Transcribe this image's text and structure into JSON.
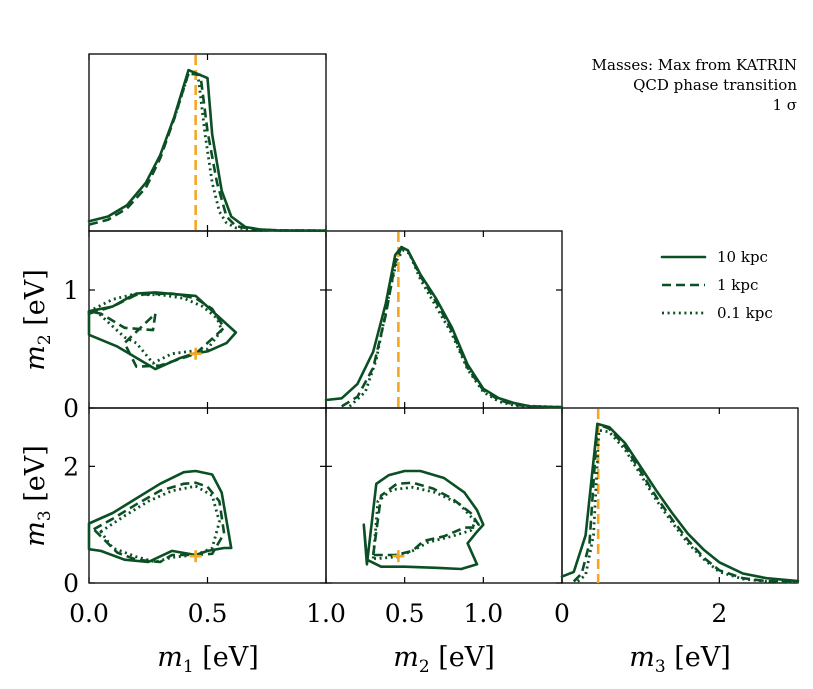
{
  "chart_data": {
    "type": "corner-plot",
    "annotation": [
      "Masses: Max from KATRIN",
      "QCD phase transition",
      "1 σ"
    ],
    "colors": {
      "curves": "#0b4f24",
      "truth": "#f5a623"
    },
    "truth": {
      "m1": 0.45,
      "m2": 0.46,
      "m3": 0.46
    },
    "legend": {
      "position": "right, middle row",
      "entries": [
        {
          "label": "10 kpc",
          "style": "solid"
        },
        {
          "label": "1 kpc",
          "style": "dashed"
        },
        {
          "label": "0.1 kpc",
          "style": "dotted"
        }
      ]
    },
    "axes": {
      "m1": {
        "label": "m1 [eV]",
        "sym": "m",
        "sub": "1",
        "unit": " [eV]",
        "range": [
          0,
          1.0
        ],
        "ticks": [
          0,
          0.5,
          1.0
        ],
        "ticklabels": [
          "0.0",
          "0.5",
          "1.0"
        ]
      },
      "m2": {
        "label": "m2 [eV]",
        "sym": "m",
        "sub": "2",
        "unit": " [eV]",
        "range": [
          0,
          1.5
        ],
        "range_x": [
          0,
          1.5
        ],
        "ticks": [
          0,
          1
        ],
        "ticklabels": [
          "0",
          "1"
        ],
        "ticks_x": [
          0.5,
          1.0
        ],
        "ticklabels_x": [
          "0.5",
          "1.0"
        ]
      },
      "m3": {
        "label": "m3 [eV]",
        "sym": "m",
        "sub": "3",
        "unit": " [eV]",
        "range": [
          0,
          3.0
        ],
        "ticks": [
          0,
          2
        ],
        "ticklabels": [
          "0",
          "2"
        ]
      }
    },
    "marginals": [
      {
        "param": "m1",
        "xlim": [
          0,
          1.0
        ],
        "ylim": [
          0,
          1.1
        ],
        "series": [
          {
            "name": "10 kpc",
            "style": "solid",
            "x": [
              0,
              0.08,
              0.16,
              0.24,
              0.3,
              0.36,
              0.42,
              0.5,
              0.52,
              0.56,
              0.6,
              0.66,
              0.72,
              0.8,
              1.0
            ],
            "y": [
              0.06,
              0.09,
              0.16,
              0.3,
              0.47,
              0.71,
              1.0,
              0.95,
              0.6,
              0.25,
              0.09,
              0.025,
              0.01,
              0.004,
              0.002
            ]
          },
          {
            "name": "1 kpc",
            "style": "dashed",
            "x": [
              0,
              0.08,
              0.16,
              0.24,
              0.3,
              0.36,
              0.42,
              0.47,
              0.5,
              0.54,
              0.58,
              0.62,
              0.7,
              0.8,
              1.0
            ],
            "y": [
              0.04,
              0.07,
              0.14,
              0.27,
              0.45,
              0.7,
              0.98,
              0.97,
              0.62,
              0.3,
              0.09,
              0.03,
              0.01,
              0.004,
              0.002
            ]
          },
          {
            "name": "0.1 kpc",
            "style": "dotted",
            "x": [
              0.36,
              0.42,
              0.46,
              0.49,
              0.52,
              0.55,
              0.58,
              0.62,
              0.7,
              0.8,
              1.0
            ],
            "y": [
              0.7,
              0.98,
              0.97,
              0.6,
              0.3,
              0.12,
              0.05,
              0.02,
              0.008,
              0.004,
              0.002
            ]
          }
        ]
      },
      {
        "param": "m2",
        "xlim": [
          0,
          1.5
        ],
        "ylim": [
          0,
          1.1
        ],
        "series": [
          {
            "name": "10 kpc",
            "style": "solid",
            "x": [
              0,
              0.1,
              0.2,
              0.3,
              0.38,
              0.44,
              0.48,
              0.52,
              0.6,
              0.7,
              0.8,
              0.9,
              1.0,
              1.1,
              1.2,
              1.3,
              1.5
            ],
            "y": [
              0.05,
              0.06,
              0.15,
              0.35,
              0.65,
              0.95,
              1.0,
              0.98,
              0.83,
              0.68,
              0.5,
              0.27,
              0.12,
              0.06,
              0.03,
              0.01,
              0.005
            ]
          },
          {
            "name": "1 kpc",
            "style": "dashed",
            "x": [
              0.1,
              0.2,
              0.3,
              0.38,
              0.44,
              0.48,
              0.52,
              0.6,
              0.7,
              0.8,
              0.9,
              1.0,
              1.1,
              1.2,
              1.3,
              1.5
            ],
            "y": [
              0.01,
              0.07,
              0.25,
              0.58,
              0.9,
              1.0,
              0.98,
              0.82,
              0.66,
              0.48,
              0.25,
              0.11,
              0.05,
              0.02,
              0.01,
              0.005
            ]
          },
          {
            "name": "0.1 kpc",
            "style": "dotted",
            "x": [
              0.15,
              0.25,
              0.32,
              0.4,
              0.45,
              0.49,
              0.53,
              0.6,
              0.7,
              0.8,
              0.9,
              1.0,
              1.1,
              1.2,
              1.5
            ],
            "y": [
              0.01,
              0.1,
              0.3,
              0.7,
              0.92,
              0.98,
              0.96,
              0.8,
              0.63,
              0.46,
              0.24,
              0.1,
              0.04,
              0.015,
              0.005
            ]
          }
        ]
      },
      {
        "param": "m3",
        "xlim": [
          0,
          3.0
        ],
        "ylim": [
          0,
          1.1
        ],
        "series": [
          {
            "name": "10 kpc",
            "style": "solid",
            "x": [
              0,
              0.15,
              0.3,
              0.45,
              0.6,
              0.8,
              1.0,
              1.2,
              1.4,
              1.6,
              1.8,
              2.0,
              2.3,
              2.6,
              3.0
            ],
            "y": [
              0.04,
              0.07,
              0.3,
              1.0,
              0.98,
              0.88,
              0.73,
              0.58,
              0.44,
              0.31,
              0.21,
              0.13,
              0.06,
              0.03,
              0.012
            ]
          },
          {
            "name": "1 kpc",
            "style": "dashed",
            "x": [
              0.15,
              0.25,
              0.35,
              0.45,
              0.6,
              0.8,
              1.0,
              1.2,
              1.4,
              1.6,
              1.8,
              2.0,
              2.3,
              2.6,
              3.0
            ],
            "y": [
              0.01,
              0.06,
              0.25,
              1.0,
              0.97,
              0.86,
              0.7,
              0.54,
              0.4,
              0.27,
              0.16,
              0.08,
              0.03,
              0.012,
              0.005
            ]
          },
          {
            "name": "0.1 kpc",
            "style": "dotted",
            "x": [
              0.2,
              0.3,
              0.4,
              0.47,
              0.6,
              0.8,
              1.0,
              1.2,
              1.4,
              1.6,
              1.8,
              2.0,
              2.3,
              2.6,
              3.0
            ],
            "y": [
              0.01,
              0.05,
              0.3,
              0.96,
              0.95,
              0.84,
              0.68,
              0.52,
              0.38,
              0.25,
              0.15,
              0.07,
              0.025,
              0.01,
              0.004
            ]
          }
        ]
      }
    ],
    "contours": [
      {
        "params": [
          "m1",
          "m2"
        ],
        "xlim": [
          0,
          1.0
        ],
        "ylim": [
          0,
          1.5
        ],
        "series": [
          {
            "name": "10 kpc",
            "style": "solid",
            "x": [
              0,
              0.1,
              0.17,
              0.2,
              0.28,
              0.45,
              0.62,
              0.58,
              0.5,
              0.44,
              0.38,
              0.28,
              0.12,
              0
            ],
            "y": [
              0.82,
              0.86,
              0.94,
              0.97,
              0.98,
              0.95,
              0.64,
              0.55,
              0.48,
              0.46,
              0.42,
              0.33,
              0.52,
              0.62
            ]
          },
          {
            "name": "1 kpc",
            "style": "dashed",
            "x": [
              0,
              0.1,
              0.2,
              0.35,
              0.45,
              0.52,
              0.57,
              0.45,
              0.3,
              0.2,
              0.15,
              0.28,
              0.27,
              0.15,
              0.05,
              0
            ],
            "y": [
              0.8,
              0.86,
              0.96,
              0.97,
              0.93,
              0.84,
              0.68,
              0.46,
              0.36,
              0.35,
              0.55,
              0.8,
              0.66,
              0.68,
              0.8,
              0.82
            ]
          },
          {
            "name": "0.1 kpc",
            "style": "dotted",
            "x": [
              0.02,
              0.1,
              0.18,
              0.3,
              0.4,
              0.48,
              0.54,
              0.56,
              0.5,
              0.35,
              0.27,
              0.2,
              0.15,
              0.02
            ],
            "y": [
              0.84,
              0.92,
              0.96,
              0.96,
              0.93,
              0.86,
              0.76,
              0.66,
              0.5,
              0.46,
              0.38,
              0.55,
              0.6,
              0.84
            ]
          }
        ]
      },
      {
        "params": [
          "m1",
          "m3"
        ],
        "xlim": [
          0,
          1.0
        ],
        "ylim": [
          0,
          3.0
        ],
        "series": [
          {
            "name": "10 kpc",
            "style": "solid",
            "x": [
              0,
              0.1,
              0.2,
              0.3,
              0.4,
              0.45,
              0.52,
              0.56,
              0.6,
              0.57,
              0.5,
              0.45,
              0.35,
              0.25,
              0.15,
              0.05,
              0
            ],
            "y": [
              1.02,
              1.2,
              1.45,
              1.7,
              1.9,
              1.92,
              1.86,
              1.55,
              0.6,
              0.6,
              0.55,
              0.48,
              0.55,
              0.36,
              0.4,
              0.55,
              0.58
            ]
          },
          {
            "name": "1 kpc",
            "style": "dashed",
            "x": [
              0.02,
              0.1,
              0.2,
              0.3,
              0.4,
              0.45,
              0.5,
              0.55,
              0.57,
              0.52,
              0.45,
              0.35,
              0.3,
              0.2,
              0.12,
              0.02
            ],
            "y": [
              0.92,
              1.1,
              1.35,
              1.58,
              1.7,
              1.72,
              1.65,
              1.4,
              0.85,
              0.5,
              0.48,
              0.48,
              0.36,
              0.4,
              0.52,
              0.92
            ]
          },
          {
            "name": "0.1 kpc",
            "style": "dotted",
            "x": [
              0.05,
              0.15,
              0.25,
              0.35,
              0.45,
              0.52,
              0.55,
              0.52,
              0.45,
              0.35,
              0.28,
              0.2,
              0.1,
              0.05
            ],
            "y": [
              0.88,
              1.15,
              1.4,
              1.58,
              1.66,
              1.5,
              1.05,
              0.6,
              0.48,
              0.44,
              0.36,
              0.45,
              0.6,
              0.88
            ]
          }
        ]
      },
      {
        "params": [
          "m2",
          "m3"
        ],
        "xlim": [
          0,
          1.5
        ],
        "ylim": [
          0,
          3.0
        ],
        "series": [
          {
            "name": "10 kpc",
            "style": "solid",
            "x": [
              0.26,
              0.32,
              0.4,
              0.5,
              0.6,
              0.75,
              0.88,
              0.96,
              1.0,
              0.96,
              0.9,
              0.96,
              0.86,
              0.7,
              0.5,
              0.35,
              0.26,
              0.24,
              0.26
            ],
            "y": [
              0.32,
              1.7,
              1.85,
              1.92,
              1.92,
              1.8,
              1.55,
              1.25,
              1.0,
              0.88,
              0.68,
              0.32,
              0.24,
              0.26,
              0.28,
              0.28,
              0.4,
              1.0,
              0.32
            ]
          },
          {
            "name": "1 kpc",
            "style": "dashed",
            "x": [
              0.3,
              0.35,
              0.45,
              0.55,
              0.68,
              0.8,
              0.92,
              0.97,
              0.96,
              0.88,
              0.75,
              0.62,
              0.55,
              0.44,
              0.32,
              0.3
            ],
            "y": [
              0.48,
              1.5,
              1.7,
              1.72,
              1.62,
              1.45,
              1.2,
              1.0,
              0.95,
              0.95,
              0.8,
              0.72,
              0.55,
              0.48,
              0.48,
              0.48
            ]
          },
          {
            "name": "0.1 kpc",
            "style": "dotted",
            "x": [
              0.3,
              0.33,
              0.42,
              0.55,
              0.7,
              0.85,
              0.95,
              0.92,
              0.8,
              0.65,
              0.55,
              0.45,
              0.33,
              0.3
            ],
            "y": [
              0.42,
              1.4,
              1.6,
              1.64,
              1.55,
              1.35,
              1.05,
              0.9,
              0.8,
              0.7,
              0.55,
              0.45,
              0.42,
              0.42
            ]
          }
        ]
      }
    ]
  }
}
